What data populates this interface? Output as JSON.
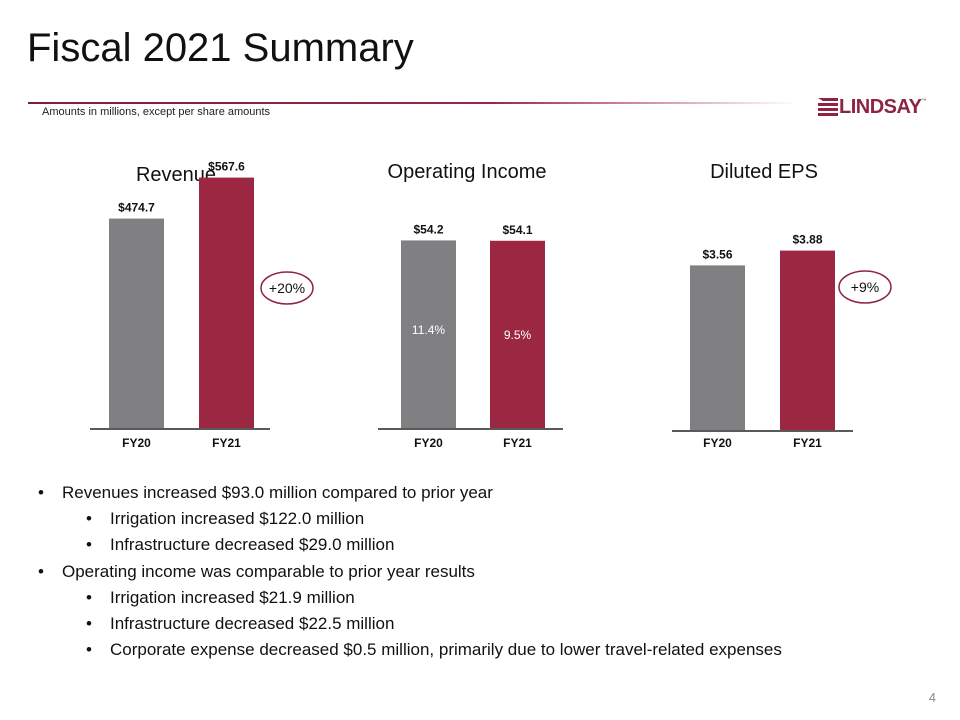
{
  "header": {
    "title": "Fiscal 2021 Summary",
    "subtitle": "Amounts in millions, except per share amounts",
    "logo_text": "LINDSAY",
    "logo_tm": "™"
  },
  "colors": {
    "fy20_bar": "#808083",
    "fy21_bar": "#9b2743",
    "accent": "#8e2440",
    "axis": "#5a5a5a"
  },
  "chart_data": [
    {
      "type": "bar",
      "title": "Revenue",
      "categories": [
        "FY20",
        "FY21"
      ],
      "values": [
        474.7,
        567.6
      ],
      "value_labels": [
        "$474.7",
        "$567.6"
      ],
      "change_badge": "+20%",
      "ylim": [
        0,
        680
      ]
    },
    {
      "type": "bar",
      "title": "Operating Income",
      "categories": [
        "FY20",
        "FY21"
      ],
      "values": [
        54.2,
        54.1
      ],
      "value_labels": [
        "$54.2",
        "$54.1"
      ],
      "inner_labels": [
        "11.4%",
        "9.5%"
      ],
      "ylim": [
        0,
        57.5
      ]
    },
    {
      "type": "bar",
      "title": "Diluted EPS",
      "categories": [
        "FY20",
        "FY21"
      ],
      "values": [
        3.56,
        3.88
      ],
      "value_labels": [
        "$3.56",
        "$3.88"
      ],
      "change_badge": "+9%",
      "ylim": [
        0,
        4.65
      ]
    }
  ],
  "bullets": [
    {
      "level": 1,
      "text": "Revenues increased $93.0 million compared to prior year"
    },
    {
      "level": 2,
      "text": "Irrigation increased $122.0 million"
    },
    {
      "level": 2,
      "text": "Infrastructure decreased $29.0 million"
    },
    {
      "level": 1,
      "text": "Operating income was comparable to prior year results"
    },
    {
      "level": 2,
      "text": "Irrigation increased $21.9 million"
    },
    {
      "level": 2,
      "text": "Infrastructure decreased $22.5 million"
    },
    {
      "level": 2,
      "text": "Corporate expense decreased $0.5 million, primarily due to lower travel-related expenses"
    }
  ],
  "page_number": "4"
}
